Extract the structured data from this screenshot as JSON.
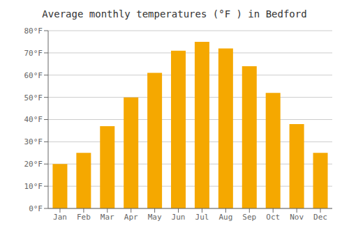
{
  "chart_data": {
    "type": "bar",
    "title": "Average monthly temperatures (°F ) in Bedford",
    "categories": [
      "Jan",
      "Feb",
      "Mar",
      "Apr",
      "May",
      "Jun",
      "Jul",
      "Aug",
      "Sep",
      "Oct",
      "Nov",
      "Dec"
    ],
    "values": [
      20,
      25,
      37,
      50,
      61,
      71,
      75,
      72,
      64,
      52,
      38,
      25
    ],
    "color": "#F5A800",
    "ylim": [
      0,
      80
    ],
    "yticks": [
      {
        "value": 0,
        "label": "0°F"
      },
      {
        "value": 10,
        "label": "10°F"
      },
      {
        "value": 20,
        "label": "20°F"
      },
      {
        "value": 30,
        "label": "30°F"
      },
      {
        "value": 40,
        "label": "40°F"
      },
      {
        "value": 50,
        "label": "50°F"
      },
      {
        "value": 60,
        "label": "60°F"
      },
      {
        "value": 70,
        "label": "70°F"
      },
      {
        "value": 80,
        "label": "80°F"
      }
    ],
    "grid": true
  }
}
